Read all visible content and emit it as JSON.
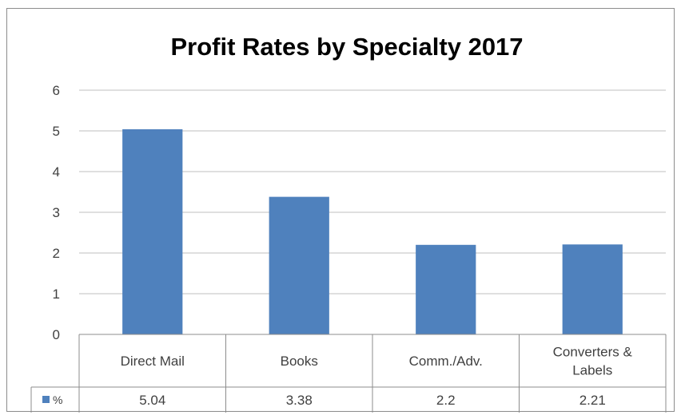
{
  "chart_data": {
    "type": "bar",
    "title": "Profit Rates by Specialty 2017",
    "categories": [
      [
        "Direct Mail"
      ],
      [
        "Books"
      ],
      [
        "Comm./Adv."
      ],
      [
        "Converters &",
        "Labels"
      ]
    ],
    "series": [
      {
        "name": "%",
        "values": [
          5.04,
          3.38,
          2.2,
          2.21
        ],
        "value_labels": [
          "5.04",
          "3.38",
          "2.2",
          "2.21"
        ],
        "color": "#4f81bd"
      }
    ],
    "ylim": [
      0,
      6
    ],
    "yticks": [
      0,
      1,
      2,
      3,
      4,
      5,
      6
    ],
    "grid": true,
    "legend": "data-table",
    "data_table": true
  }
}
